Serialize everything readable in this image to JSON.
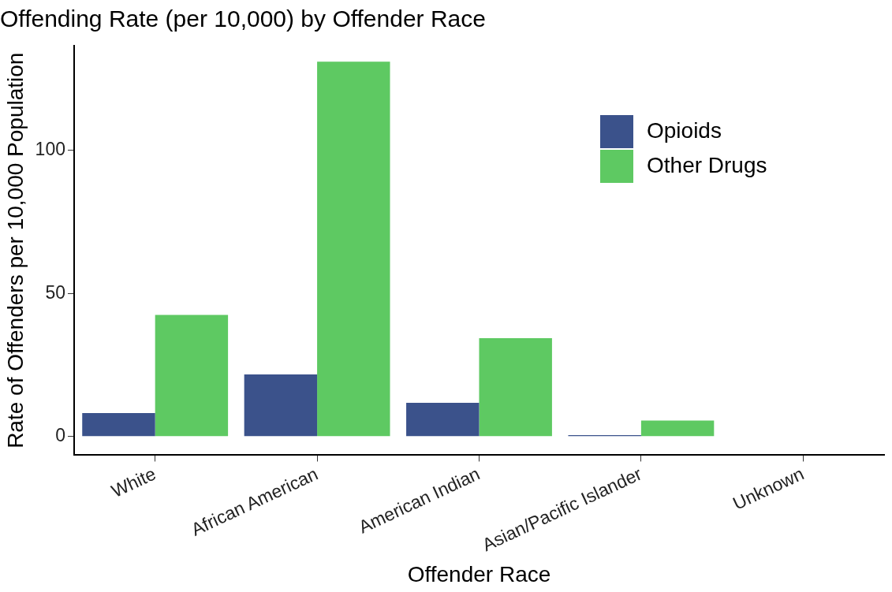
{
  "chart_data": {
    "type": "bar",
    "title": "Offending Rate (per 10,000) by Offender Race",
    "xlabel": "Offender Race",
    "ylabel": "Rate of Offenders per 10,000 Population",
    "categories": [
      "White",
      "African American",
      "American Indian",
      "Asian/Pacific Islander",
      "Unknown"
    ],
    "series": [
      {
        "name": "Opioids",
        "color": "#3b528b",
        "values": [
          8.2,
          21.7,
          11.8,
          0.5,
          0
        ]
      },
      {
        "name": "Other Drugs",
        "color": "#5ec962",
        "values": [
          42.5,
          131,
          34.4,
          5.6,
          0
        ]
      }
    ],
    "ylim": [
      -6.5,
      136.6
    ],
    "yticks": [
      0,
      50,
      100
    ],
    "grid": false,
    "legend": "top right"
  }
}
